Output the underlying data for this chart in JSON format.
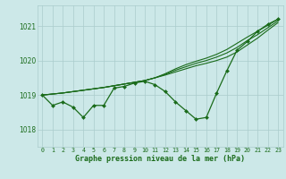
{
  "background_color": "#cce8e8",
  "grid_color": "#aacccc",
  "line_color": "#1a6b1a",
  "xlabel": "Graphe pression niveau de la mer (hPa)",
  "xlim": [
    -0.5,
    23.5
  ],
  "ylim": [
    1017.5,
    1021.6
  ],
  "yticks": [
    1018,
    1019,
    1020,
    1021
  ],
  "xticks": [
    0,
    1,
    2,
    3,
    4,
    5,
    6,
    7,
    8,
    9,
    10,
    11,
    12,
    13,
    14,
    15,
    16,
    17,
    18,
    19,
    20,
    21,
    22,
    23
  ],
  "series_main": [
    1019.0,
    1018.7,
    1018.8,
    1018.65,
    1018.35,
    1018.7,
    1018.7,
    1019.2,
    1019.25,
    1019.35,
    1019.4,
    1019.3,
    1019.1,
    1018.8,
    1018.55,
    1018.3,
    1018.35,
    1019.05,
    1019.7,
    1020.3,
    1020.55,
    1020.85,
    1021.05,
    1021.2
  ],
  "trend1": [
    1019.0,
    1019.03,
    1019.06,
    1019.1,
    1019.14,
    1019.18,
    1019.22,
    1019.27,
    1019.32,
    1019.37,
    1019.42,
    1019.5,
    1019.58,
    1019.67,
    1019.76,
    1019.85,
    1019.92,
    1020.0,
    1020.1,
    1020.25,
    1020.45,
    1020.65,
    1020.88,
    1021.1
  ],
  "trend2": [
    1019.0,
    1019.03,
    1019.06,
    1019.1,
    1019.14,
    1019.18,
    1019.22,
    1019.27,
    1019.32,
    1019.37,
    1019.42,
    1019.5,
    1019.6,
    1019.72,
    1019.82,
    1019.92,
    1020.0,
    1020.1,
    1020.22,
    1020.38,
    1020.58,
    1020.75,
    1020.95,
    1021.15
  ],
  "trend3": [
    1019.0,
    1019.03,
    1019.06,
    1019.1,
    1019.14,
    1019.18,
    1019.22,
    1019.27,
    1019.32,
    1019.37,
    1019.42,
    1019.5,
    1019.62,
    1019.76,
    1019.88,
    1019.98,
    1020.07,
    1020.18,
    1020.32,
    1020.5,
    1020.68,
    1020.85,
    1021.02,
    1021.2
  ]
}
